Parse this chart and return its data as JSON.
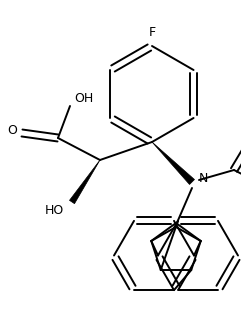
{
  "bg_color": "#ffffff",
  "line_color": "#000000",
  "bond_width": 1.4,
  "figsize": [
    2.41,
    3.34
  ],
  "dpi": 100,
  "xlim": [
    0,
    241
  ],
  "ylim": [
    0,
    334
  ]
}
